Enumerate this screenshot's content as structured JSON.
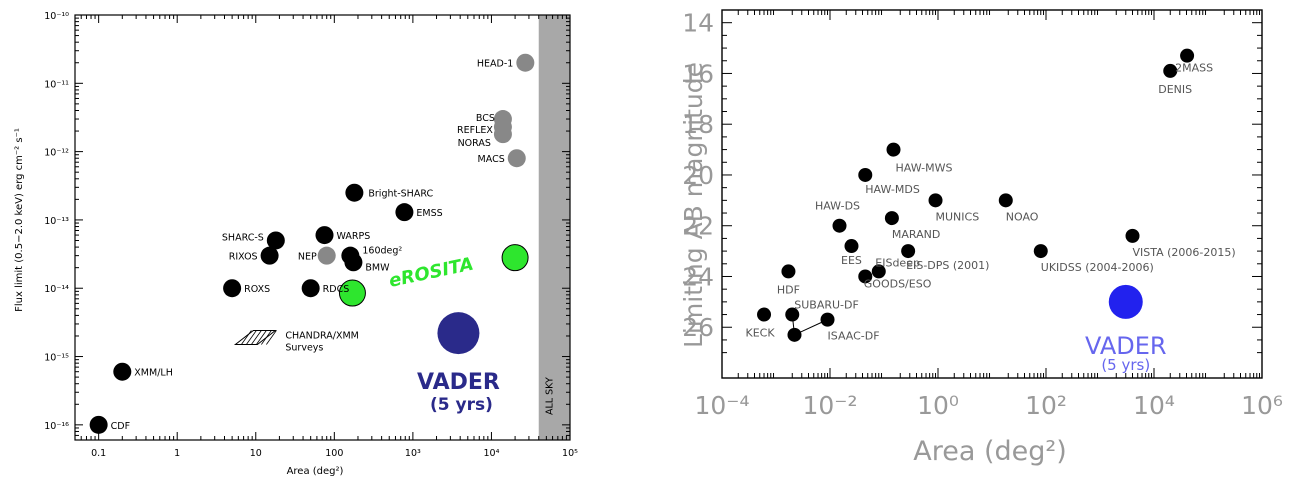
{
  "chart_data": [
    {
      "type": "scatter",
      "title": "",
      "xlabel": "Area (deg²)",
      "ylabel": "Flux limit (0.5−2.0 keV) erg cm⁻² s⁻¹",
      "x_scale": "log",
      "y_scale": "log",
      "xlim": [
        0.05,
        100000
      ],
      "ylim": [
        6e-17,
        1e-10
      ],
      "x_ticks": [
        "0.1",
        "1",
        "10",
        "100",
        "10³",
        "10⁴",
        "10⁵"
      ],
      "y_ticks": [
        "10⁻¹⁶",
        "10⁻¹⁵",
        "10⁻¹⁴",
        "10⁻¹³",
        "10⁻¹²",
        "10⁻¹¹",
        "10⁻¹⁰"
      ],
      "all_sky_label": "ALL SKY",
      "all_sky_from": 40000,
      "colors": {
        "black": "#000000",
        "gray": "#888888",
        "green": "#2ee62e",
        "vader": "#2a2a8a",
        "allsky": "#a8a8a8"
      },
      "points": [
        {
          "name": "CDF",
          "x": 0.1,
          "y": 1e-16,
          "color": "black"
        },
        {
          "name": "XMM/LH",
          "x": 0.2,
          "y": 6e-16,
          "color": "black"
        },
        {
          "name": "ROXS",
          "x": 5,
          "y": 1e-14,
          "color": "black"
        },
        {
          "name": "RIXOS",
          "x": 15,
          "y": 3e-14,
          "color": "black"
        },
        {
          "name": "SHARC-S",
          "x": 18,
          "y": 5e-14,
          "color": "black"
        },
        {
          "name": "RDCS",
          "x": 50,
          "y": 1e-14,
          "color": "black"
        },
        {
          "name": "NEP",
          "x": 80,
          "y": 3e-14,
          "color": "gray"
        },
        {
          "name": "WARPS",
          "x": 75,
          "y": 6e-14,
          "color": "black"
        },
        {
          "name": "160deg²",
          "x": 160,
          "y": 3e-14,
          "color": "black"
        },
        {
          "name": "BMW",
          "x": 175,
          "y": 2.4e-14,
          "color": "black"
        },
        {
          "name": "Bright-SHARC",
          "x": 180,
          "y": 2.5e-13,
          "color": "black"
        },
        {
          "name": "EMSS",
          "x": 780,
          "y": 1.3e-13,
          "color": "black"
        },
        {
          "name": "HEAD-1",
          "x": 27000,
          "y": 2e-11,
          "color": "gray"
        },
        {
          "name": "BCS",
          "x": 14000,
          "y": 3e-12,
          "color": "gray"
        },
        {
          "name": "REFLEX",
          "x": 14000,
          "y": 2.3e-12,
          "color": "gray"
        },
        {
          "name": "NORAS",
          "x": 14000,
          "y": 1.8e-12,
          "color": "gray"
        },
        {
          "name": "MACS",
          "x": 21000,
          "y": 8e-13,
          "color": "gray"
        }
      ],
      "erosita": {
        "label": "eROSITA",
        "points": [
          {
            "x": 170,
            "y": 8.5e-15
          },
          {
            "x": 20000,
            "y": 2.8e-14
          }
        ]
      },
      "vader": {
        "label": "VADER",
        "sublabel": "(5 yrs)",
        "x": 3800,
        "y": 2.2e-15
      },
      "chandra": {
        "label_1": "CHANDRA/XMM",
        "label_2": "Surveys"
      }
    },
    {
      "type": "scatter",
      "title": "",
      "xlabel": "Area (deg²)",
      "ylabel": "Limiting AB magnitude",
      "x_scale": "log",
      "xlim": [
        0.0001,
        1000000
      ],
      "ylim": [
        28.0,
        13.5
      ],
      "x_ticks": [
        "10⁻⁴",
        "10⁻²",
        "10⁰",
        "10²",
        "10⁴",
        "10⁶"
      ],
      "y_ticks": [
        "14",
        "16",
        "18",
        "20",
        "22",
        "24",
        "26"
      ],
      "colors": {
        "black": "#000000",
        "vader": "#2222ee",
        "vader_text": "#6666ee"
      },
      "points": [
        {
          "name": "KECK",
          "x": 0.0006,
          "y": 25.5
        },
        {
          "name": "HDF",
          "x": 0.0017,
          "y": 23.8
        },
        {
          "name": "SUBARU-DF",
          "x": 0.002,
          "y": 25.5
        },
        {
          "name": "",
          "x": 0.0022,
          "y": 26.3
        },
        {
          "name": "ISAAC-DF",
          "x": 0.009,
          "y": 25.7
        },
        {
          "name": "HAW-DS",
          "x": 0.015,
          "y": 22.0
        },
        {
          "name": "EES",
          "x": 0.025,
          "y": 22.8
        },
        {
          "name": "EISdeep",
          "x": 0.045,
          "y": 24.0
        },
        {
          "name": "GOODS/ESO",
          "x": 0.08,
          "y": 23.8
        },
        {
          "name": "HAW-MDS",
          "x": 0.045,
          "y": 20.0
        },
        {
          "name": "HAW-MWS",
          "x": 0.15,
          "y": 19.0
        },
        {
          "name": "MARAND",
          "x": 0.14,
          "y": 21.7
        },
        {
          "name": "EIS-DPS (2001)",
          "x": 0.28,
          "y": 23.0
        },
        {
          "name": "MUNICS",
          "x": 0.9,
          "y": 21.0
        },
        {
          "name": "NOAO",
          "x": 18,
          "y": 21.0
        },
        {
          "name": "UKIDSS (2004-2006)",
          "x": 80,
          "y": 23.0
        },
        {
          "name": "VISTA (2006-2015)",
          "x": 4000,
          "y": 22.4
        },
        {
          "name": "2MASS",
          "x": 41000,
          "y": 15.3
        },
        {
          "name": "DENIS",
          "x": 20000,
          "y": 15.9
        }
      ],
      "vader": {
        "label": "VADER",
        "sublabel": "(5 yrs)",
        "x": 3000,
        "y": 25.0
      }
    }
  ]
}
